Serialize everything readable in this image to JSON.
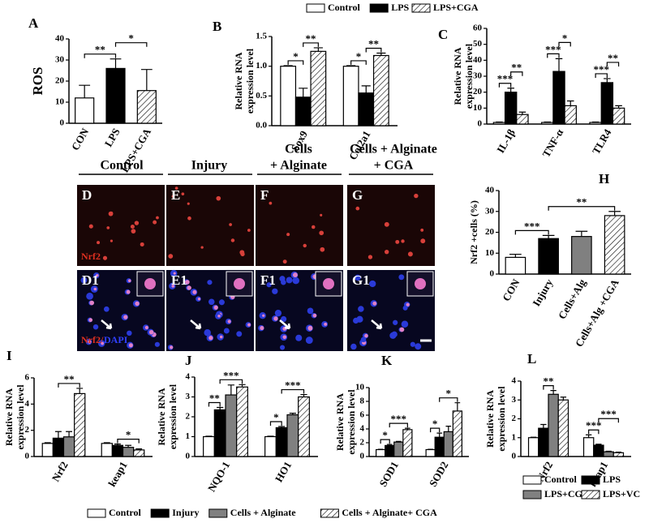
{
  "chart_data": [
    {
      "type": "bar",
      "label": "A",
      "ylabel": [
        "ROS"
      ],
      "categories": [
        "CON",
        "LPS",
        "LPS+CGA"
      ],
      "values": [
        12,
        26,
        15.5
      ],
      "errors": [
        6,
        4.5,
        10
      ],
      "colors": [
        "#ffffff",
        "#000000",
        "hatch"
      ],
      "ylim": [
        0,
        40
      ],
      "yticks": [
        0,
        10,
        20,
        30,
        40
      ],
      "annotations": [
        {
          "text": "**",
          "from": 0,
          "to": 1
        },
        {
          "text": "*",
          "from": 1,
          "to": 2
        }
      ]
    },
    {
      "type": "grouped-bar",
      "label": "B",
      "ylabel": [
        "Relative RNA",
        "expression level"
      ],
      "categories": [
        "Sox9",
        "Col2a1"
      ],
      "series": [
        {
          "name": "Control",
          "color": "#ffffff",
          "values": [
            1,
            1
          ],
          "errors": [
            0.01,
            0.01
          ]
        },
        {
          "name": "LPS",
          "color": "#000000",
          "values": [
            0.48,
            0.55
          ],
          "errors": [
            0.15,
            0.12
          ]
        },
        {
          "name": "LPS+CGA",
          "color": "hatch",
          "values": [
            1.25,
            1.18
          ],
          "errors": [
            0.06,
            0.04
          ]
        }
      ],
      "ylim": [
        0,
        1.5
      ],
      "yticks": [
        {
          "value": 0,
          "label": "0.0"
        },
        0.5,
        {
          "value": 1,
          "label": "1.0"
        },
        1.5
      ],
      "legend": "top",
      "annotations": [
        {
          "group": 0,
          "text": "*",
          "from": 0,
          "to": 1
        },
        {
          "group": 0,
          "text": "**",
          "from": 1,
          "to": 2
        },
        {
          "group": 1,
          "text": "*",
          "from": 0,
          "to": 1
        },
        {
          "group": 1,
          "text": "**",
          "from": 1,
          "to": 2
        }
      ]
    },
    {
      "type": "grouped-bar",
      "label": "C",
      "ylabel": [
        "Relative RNA",
        "expression level"
      ],
      "categories": [
        "IL-1β",
        "TNF-α",
        "TLR4"
      ],
      "series": [
        {
          "color": "#ffffff",
          "values": [
            1,
            1,
            1
          ],
          "errors": [
            0.3,
            0.3,
            0.3
          ]
        },
        {
          "color": "#000000",
          "values": [
            20,
            33,
            26
          ],
          "errors": [
            2.5,
            8,
            2.5
          ]
        },
        {
          "color": "hatch",
          "values": [
            6,
            11.5,
            10
          ],
          "errors": [
            1.5,
            3,
            1.5
          ]
        }
      ],
      "ylim": [
        0,
        60
      ],
      "yticks": [
        0,
        10,
        20,
        30,
        40,
        50,
        60
      ],
      "annotations": [
        {
          "group": 0,
          "text": "***",
          "from": 0,
          "to": 1
        },
        {
          "group": 0,
          "text": "**",
          "from": 1,
          "to": 2
        },
        {
          "group": 1,
          "text": "***",
          "from": 0,
          "to": 1
        },
        {
          "group": 1,
          "text": "*",
          "from": 1,
          "to": 2
        },
        {
          "group": 2,
          "text": "***",
          "from": 0,
          "to": 1
        },
        {
          "group": 2,
          "text": "**",
          "from": 1,
          "to": 2
        }
      ]
    },
    {
      "type": "bar",
      "label": "H",
      "ylabel": [
        "Nrf2 +cells (%)"
      ],
      "categories": [
        "CON",
        "Injury",
        "Cells+Alg",
        "Cells+Alg +CGA"
      ],
      "values": [
        8,
        17,
        18,
        28
      ],
      "errors": [
        1.5,
        1.5,
        2.5,
        2
      ],
      "colors": [
        "#ffffff",
        "#000000",
        "#808080",
        "hatch"
      ],
      "ylim": [
        0,
        40
      ],
      "yticks": [
        0,
        10,
        20,
        30,
        40
      ],
      "annotations": [
        {
          "text": "***",
          "from": 0,
          "to": 1
        },
        {
          "text": "**",
          "from": 1,
          "to": 3
        }
      ]
    },
    {
      "type": "grouped-bar",
      "label": "I",
      "ylabel": [
        "Relative RNA",
        "expression level"
      ],
      "categories": [
        "Nrf2",
        "keap1"
      ],
      "series": [
        {
          "name": "Control",
          "color": "#ffffff",
          "values": [
            1,
            1
          ],
          "errors": [
            0.05,
            0.05
          ]
        },
        {
          "name": "Injury",
          "color": "#000000",
          "values": [
            1.4,
            0.85
          ],
          "errors": [
            0.5,
            0.1
          ]
        },
        {
          "name": "Cells + Alginate",
          "color": "#808080",
          "values": [
            1.5,
            0.7
          ],
          "errors": [
            0.4,
            0.15
          ]
        },
        {
          "name": "Cells + Alginate+ CGA",
          "color": "hatch",
          "values": [
            4.8,
            0.5
          ],
          "errors": [
            0.4,
            0.08
          ]
        }
      ],
      "ylim": [
        0,
        6
      ],
      "yticks": [
        0,
        2,
        4,
        6
      ],
      "legend": "bottom",
      "annotations": [
        {
          "group": 0,
          "text": "**",
          "from": 1,
          "to": 3
        },
        {
          "group": 1,
          "text": "*",
          "from": 1,
          "to": 3
        }
      ]
    },
    {
      "type": "grouped-bar",
      "label": "J",
      "ylabel": [
        "Relative RNA",
        "expression level"
      ],
      "categories": [
        "NQO-1",
        "HO1"
      ],
      "series": [
        {
          "color": "#ffffff",
          "values": [
            1,
            1
          ],
          "errors": [
            0.02,
            0.02
          ]
        },
        {
          "color": "#000000",
          "values": [
            2.35,
            1.45
          ],
          "errors": [
            0.12,
            0.06
          ]
        },
        {
          "color": "#808080",
          "values": [
            3.1,
            2.1
          ],
          "errors": [
            0.5,
            0.08
          ]
        },
        {
          "color": "hatch",
          "values": [
            3.5,
            3.0
          ],
          "errors": [
            0.12,
            0.12
          ]
        }
      ],
      "ylim": [
        0,
        4
      ],
      "yticks": [
        0,
        1,
        2,
        3,
        4
      ],
      "annotations": [
        {
          "group": 0,
          "text": "**",
          "from": 0,
          "to": 1
        },
        {
          "group": 0,
          "text": "***",
          "from": 1,
          "to": 3
        },
        {
          "group": 1,
          "text": "*",
          "from": 0,
          "to": 1
        },
        {
          "group": 1,
          "text": "***",
          "from": 1,
          "to": 3
        }
      ]
    },
    {
      "type": "grouped-bar",
      "label": "K",
      "ylabel": [
        "Relative RNA",
        "expression level"
      ],
      "categories": [
        "SOD1",
        "SOD2"
      ],
      "series": [
        {
          "color": "#ffffff",
          "values": [
            1,
            1
          ],
          "errors": [
            0.05,
            0.05
          ]
        },
        {
          "color": "#000000",
          "values": [
            1.6,
            2.8
          ],
          "errors": [
            0.15,
            0.6
          ]
        },
        {
          "color": "#808080",
          "values": [
            2.1,
            3.6
          ],
          "errors": [
            0.1,
            0.8
          ]
        },
        {
          "color": "hatch",
          "values": [
            3.9,
            6.6
          ],
          "errors": [
            0.2,
            1.2
          ]
        }
      ],
      "ylim": [
        0,
        10
      ],
      "yticks": [
        0,
        2,
        4,
        6,
        8,
        10
      ],
      "annotations": [
        {
          "group": 0,
          "text": "*",
          "from": 0,
          "to": 1
        },
        {
          "group": 0,
          "text": "***",
          "from": 1,
          "to": 3
        },
        {
          "group": 1,
          "text": "*",
          "from": 0,
          "to": 1
        },
        {
          "group": 1,
          "text": "*",
          "from": 1,
          "to": 3
        }
      ]
    },
    {
      "type": "grouped-bar",
      "label": "L",
      "ylabel": [
        "Relative RNA",
        "expression level"
      ],
      "categories": [
        "Nrf2",
        "keap1"
      ],
      "series": [
        {
          "name": "Control",
          "color": "#ffffff",
          "values": [
            1,
            1
          ],
          "errors": [
            0.02,
            0.15
          ]
        },
        {
          "name": "LPS",
          "color": "#000000",
          "values": [
            1.5,
            0.6
          ],
          "errors": [
            0.2,
            0.05
          ]
        },
        {
          "name": "LPS+CGA",
          "color": "#808080",
          "values": [
            3.3,
            0.25
          ],
          "errors": [
            0.2,
            0.03
          ]
        },
        {
          "name": "LPS+VC",
          "color": "hatch",
          "values": [
            3.0,
            0.2
          ],
          "errors": [
            0.15,
            0.03
          ]
        }
      ],
      "ylim": [
        0,
        4
      ],
      "yticks": [
        0,
        1,
        2,
        3,
        4
      ],
      "legend": "grid",
      "annotations": [
        {
          "group": 0,
          "text": "**",
          "from": 1,
          "to": 2
        },
        {
          "group": 1,
          "text": "***",
          "from": 0,
          "to": 1
        },
        {
          "group": 1,
          "text": "***",
          "from": 1,
          "to": 3
        }
      ]
    }
  ],
  "image_panels": {
    "headers": [
      [
        "Control"
      ],
      [
        "Injury"
      ],
      [
        "Cells",
        "+ Alginate"
      ],
      [
        "Cells + Alginate",
        "+ CGA"
      ]
    ],
    "labels": [
      [
        "D",
        "E",
        "F",
        "G"
      ],
      [
        "D1",
        "E1",
        "F1",
        "G1"
      ]
    ],
    "stain_top": "Nrf2",
    "stain_bottom_red": "Nrf2/",
    "stain_bottom_blue": "DAPI"
  }
}
